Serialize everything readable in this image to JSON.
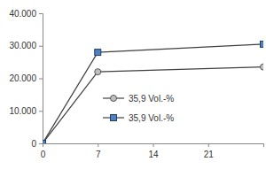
{
  "chart_data": {
    "type": "line",
    "x": [
      0,
      7,
      28
    ],
    "series": [
      {
        "name": "35,9 Vol.-%",
        "color": "#c0c0c0",
        "marker": "circle",
        "values": [
          0,
          22000,
          23500
        ]
      },
      {
        "name": "35,9 Vol.-%",
        "color": "#4f81bd",
        "marker": "square",
        "values": [
          0,
          28000,
          30500
        ]
      }
    ],
    "xlim": [
      0,
      28
    ],
    "xticks": [
      0,
      7,
      14,
      21
    ],
    "ylim": [
      0,
      40000
    ],
    "yticks": [
      0,
      {
        "value": 10000,
        "label": "10.000"
      },
      {
        "value": 20000,
        "label": "20.000"
      },
      {
        "value": 30000,
        "label": "30.000"
      },
      {
        "value": 40000,
        "label": "40.000"
      }
    ],
    "grid": false,
    "legend": "bottom"
  }
}
